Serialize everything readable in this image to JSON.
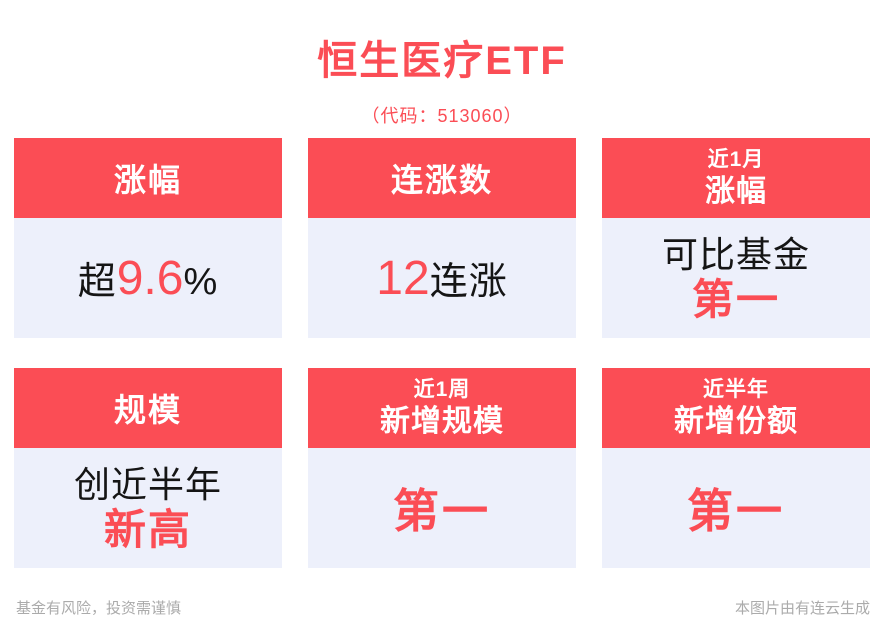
{
  "page": {
    "title": "恒生医疗ETF",
    "subtitle": "（代码：513060）"
  },
  "cards": [
    {
      "id": "gain",
      "header": {
        "line1": "涨幅"
      },
      "body": {
        "prefix": "超",
        "value": "9.6",
        "suffix": "%"
      }
    },
    {
      "id": "consecutive-gains",
      "header": {
        "line1": "连涨数"
      },
      "body": {
        "value": "12",
        "suffix": "连涨"
      }
    },
    {
      "id": "one-month-gain",
      "header": {
        "line1": "近1月",
        "line2": "涨幅"
      },
      "body": {
        "line1": "可比基金",
        "line2": "第一"
      }
    },
    {
      "id": "scale",
      "header": {
        "line1": "规模"
      },
      "body": {
        "line1": "创近半年",
        "line2": "新高"
      }
    },
    {
      "id": "one-week-new-scale",
      "header": {
        "line1": "近1周",
        "line2": "新增规模"
      },
      "body": {
        "value": "第一"
      }
    },
    {
      "id": "half-year-new-shares",
      "header": {
        "line1": "近半年",
        "line2": "新增份额"
      },
      "body": {
        "value": "第一"
      }
    }
  ],
  "footer": {
    "left": "基金有风险，投资需谨慎",
    "right": "本图片由有连云生成"
  },
  "colors": {
    "accent_red": "#FB4D55",
    "card_body_bg": "#EDF0FB",
    "text_black": "#151515",
    "footer_gray": "#ABABAB"
  }
}
